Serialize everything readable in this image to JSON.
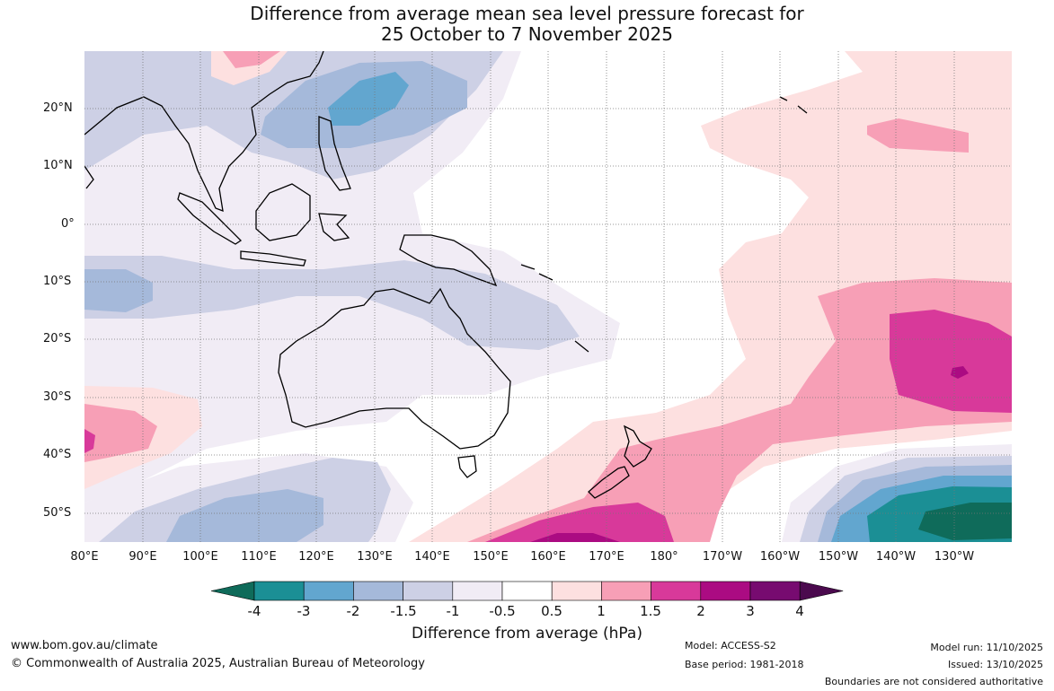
{
  "title": {
    "line1": "Difference from average mean sea level pressure forecast for",
    "line2": "25 October to 7 November 2025"
  },
  "map": {
    "lat_ticks": [
      "20°N",
      "10°N",
      "0°",
      "10°S",
      "20°S",
      "30°S",
      "40°S",
      "50°S"
    ],
    "lon_ticks": [
      "80°E",
      "90°E",
      "100°E",
      "110°E",
      "120°E",
      "130°E",
      "140°E",
      "150°E",
      "160°E",
      "170°E",
      "180°",
      "170°W",
      "160°W",
      "150°W",
      "140°W",
      "130°W"
    ]
  },
  "colorbar": {
    "ticks": [
      "-4",
      "-3",
      "-2",
      "-1.5",
      "-1",
      "-0.5",
      "0.5",
      "1",
      "1.5",
      "2",
      "3",
      "4"
    ],
    "colors": [
      "#0f6b5a",
      "#1b8f95",
      "#62a6cf",
      "#a5b9da",
      "#cdd0e5",
      "#f1ecf5",
      "#ffffff",
      "#fde0e0",
      "#f79fb6",
      "#d8399a",
      "#ab0b82",
      "#770b70",
      "#4b0a4e"
    ],
    "label": "Difference from average (hPa)"
  },
  "footer": {
    "website": "www.bom.gov.au/climate",
    "copyright": "© Commonwealth of Australia 2025, Australian Bureau of Meteorology",
    "model": "Model: ACCESS-S2",
    "base_period": "Base period: 1981-2018",
    "model_run": "Model run: 11/10/2025",
    "issued": "Issued: 13/10/2025",
    "disclaimer": "Boundaries are not considered authoritative"
  }
}
